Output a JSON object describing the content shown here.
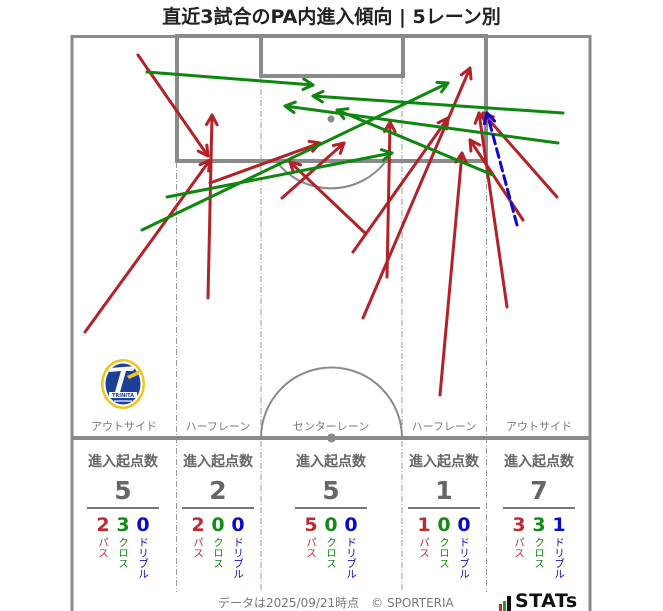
{
  "title": "直近3試合のPA内進入傾向 | 5レーン別",
  "stats": {
    "heading": "進入起点数"
  },
  "colors": {
    "pass": "#b22228",
    "cross": "#0d870d",
    "dribble": "#0a0ad0",
    "lines": "#8a8a8a"
  },
  "footer": {
    "note": "データは2025/09/21時点　© SPORTERIA",
    "brand": "STATs"
  },
  "crest": {
    "icon": "club-crest-icon",
    "text": "TRINITA"
  },
  "chart_data": {
    "type": "scatter",
    "subtype": "arrow-map",
    "title": "直近3試合のPA内進入傾向 | 5レーン別",
    "xlabel": "",
    "ylabel": "",
    "categories": [
      "アウトサイド",
      "ハーフレーン",
      "センターレーン",
      "ハーフレーン",
      "アウトサイド"
    ],
    "totals": [
      5,
      2,
      5,
      1,
      7
    ],
    "series": [
      {
        "name": "パス",
        "key": "pass",
        "values": [
          2,
          2,
          5,
          1,
          3
        ]
      },
      {
        "name": "クロス",
        "key": "cross",
        "values": [
          3,
          0,
          0,
          0,
          3
        ]
      },
      {
        "name": "ドリブル",
        "key": "dribble",
        "values": [
          0,
          0,
          0,
          0,
          1
        ]
      }
    ],
    "arrows": [
      {
        "type": "pass",
        "from": [
          138,
          55
        ],
        "to": [
          208,
          156
        ]
      },
      {
        "type": "pass",
        "from": [
          85,
          332
        ],
        "to": [
          210,
          160
        ]
      },
      {
        "type": "pass",
        "from": [
          208,
          298
        ],
        "to": [
          212,
          115
        ]
      },
      {
        "type": "pass",
        "from": [
          210,
          183
        ],
        "to": [
          320,
          143
        ]
      },
      {
        "type": "pass",
        "from": [
          282,
          198
        ],
        "to": [
          344,
          143
        ]
      },
      {
        "type": "pass",
        "from": [
          365,
          233
        ],
        "to": [
          290,
          162
        ]
      },
      {
        "type": "pass",
        "from": [
          353,
          252
        ],
        "to": [
          448,
          118
        ]
      },
      {
        "type": "pass",
        "from": [
          387,
          277
        ],
        "to": [
          390,
          122
        ]
      },
      {
        "type": "pass",
        "from": [
          363,
          318
        ],
        "to": [
          470,
          68
        ]
      },
      {
        "type": "pass",
        "from": [
          440,
          395
        ],
        "to": [
          462,
          153
        ]
      },
      {
        "type": "pass",
        "from": [
          507,
          307
        ],
        "to": [
          479,
          113
        ]
      },
      {
        "type": "pass",
        "from": [
          557,
          197
        ],
        "to": [
          483,
          113
        ]
      },
      {
        "type": "pass",
        "from": [
          523,
          220
        ],
        "to": [
          470,
          140
        ]
      },
      {
        "type": "cross",
        "from": [
          147,
          72
        ],
        "to": [
          313,
          85
        ]
      },
      {
        "type": "cross",
        "from": [
          563,
          113
        ],
        "to": [
          313,
          96
        ]
      },
      {
        "type": "cross",
        "from": [
          558,
          143
        ],
        "to": [
          285,
          106
        ]
      },
      {
        "type": "cross",
        "from": [
          493,
          175
        ],
        "to": [
          337,
          110
        ]
      },
      {
        "type": "cross",
        "from": [
          142,
          230
        ],
        "to": [
          448,
          83
        ]
      },
      {
        "type": "cross",
        "from": [
          167,
          197
        ],
        "to": [
          392,
          153
        ]
      },
      {
        "type": "dribble",
        "from": [
          517,
          225
        ],
        "to": [
          487,
          113
        ]
      }
    ]
  }
}
